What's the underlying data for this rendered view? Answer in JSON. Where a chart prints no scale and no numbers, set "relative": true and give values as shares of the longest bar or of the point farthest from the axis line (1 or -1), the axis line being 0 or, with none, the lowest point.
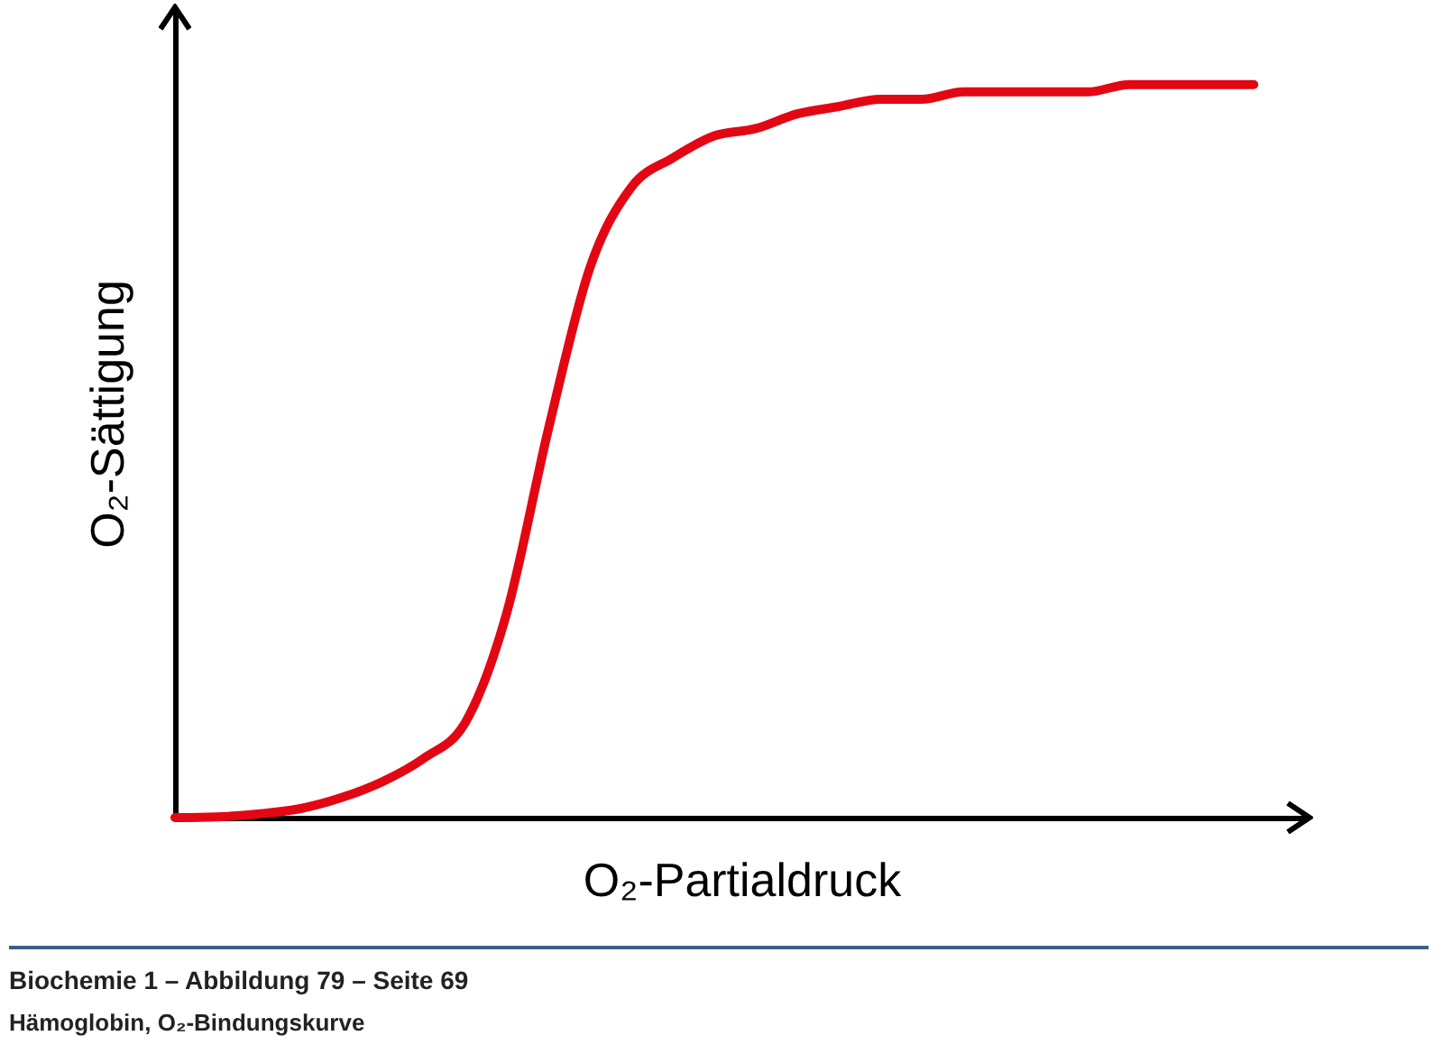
{
  "chart_data": {
    "type": "line",
    "relative": true,
    "xlabel": "O₂-Partialdruck",
    "ylabel": "O₂-Sättigung",
    "categories": [
      null,
      null,
      null,
      null,
      null,
      null,
      null,
      null,
      null,
      null,
      null,
      null,
      null,
      null,
      null,
      null,
      null,
      null,
      null,
      null,
      null,
      null,
      null,
      null,
      null,
      null,
      null
    ],
    "series": [
      {
        "color": "#e30613",
        "values": [
          0,
          0.001,
          0.005,
          0.012,
          0.027,
          0.049,
          0.081,
          0.13,
          0.28,
          0.53,
          0.75,
          0.86,
          0.9,
          0.93,
          0.94,
          0.96,
          0.97,
          0.98,
          0.98,
          0.99,
          0.99,
          0.99,
          0.99,
          1,
          1,
          1,
          1
        ]
      }
    ],
    "grid": false,
    "marker": "none",
    "line_style": "solid",
    "annotations": [
      "Biochemie 1 – Abbildung 79 – Seite 69",
      "Hämoglobin, O₂-Bindungskurve"
    ]
  }
}
